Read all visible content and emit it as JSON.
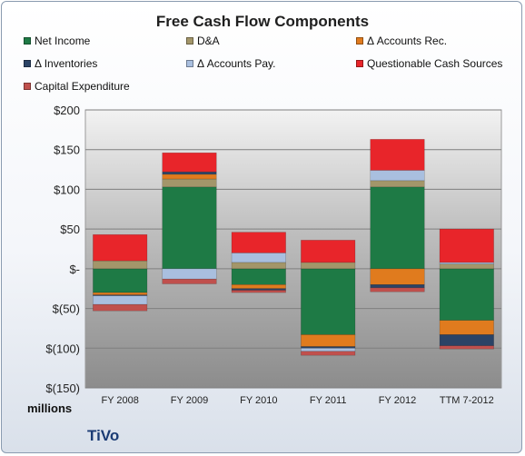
{
  "chart_data": {
    "type": "bar",
    "stacked": true,
    "title": "Free Cash Flow Components",
    "units_label": "millions",
    "company": "TiVo",
    "categories": [
      "FY 2008",
      "FY 2009",
      "FY 2010",
      "FY 2011",
      "FY 2012",
      "TTM 7-2012"
    ],
    "ylim": [
      -150,
      200
    ],
    "yticks": [
      200,
      150,
      100,
      50,
      0,
      -50,
      -100,
      -150
    ],
    "ytick_labels": [
      "$200",
      "$150",
      "$100",
      "$50",
      "$-",
      "$(50)",
      "$(100)",
      "$(150)"
    ],
    "grid": true,
    "legend_position": "top",
    "series": [
      {
        "name": "Net Income",
        "color": "#1e7a45",
        "values": [
          -30,
          103,
          -20,
          -83,
          103,
          -65
        ]
      },
      {
        "name": "D&A",
        "color": "#a3966a",
        "values": [
          10,
          10,
          8,
          8,
          8,
          6
        ]
      },
      {
        "name": "Δ Accounts Rec.",
        "color": "#e07b1e",
        "values": [
          -3,
          6,
          -5,
          -15,
          -20,
          -18
        ]
      },
      {
        "name": "Δ Inventories",
        "color": "#2b4366",
        "values": [
          -1,
          3,
          -2,
          -2,
          -4,
          -14
        ]
      },
      {
        "name": "Δ Accounts Pay.",
        "color": "#a9bfdf",
        "values": [
          -11,
          -13,
          12,
          -4,
          13,
          2
        ]
      },
      {
        "name": "Questionable Cash Sources",
        "color": "#e8252a",
        "values": [
          33,
          24,
          26,
          28,
          39,
          42
        ]
      },
      {
        "name": "Capital Expenditure",
        "color": "#c0504d",
        "values": [
          -8,
          -6,
          -3,
          -5,
          -5,
          -4
        ]
      }
    ]
  }
}
